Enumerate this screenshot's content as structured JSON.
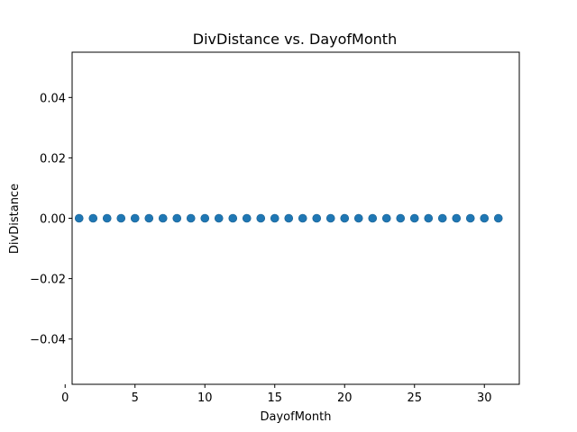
{
  "chart_data": {
    "type": "scatter",
    "title": "DivDistance vs. DayofMonth",
    "xlabel": "DayofMonth",
    "ylabel": "DivDistance",
    "xlim": [
      0.5,
      32.5
    ],
    "ylim": [
      -0.055,
      0.055
    ],
    "x_ticks": [
      0,
      5,
      10,
      15,
      20,
      25,
      30
    ],
    "x_tick_labels": [
      "0",
      "5",
      "10",
      "15",
      "20",
      "25",
      "30"
    ],
    "y_ticks": [
      -0.04,
      -0.02,
      0.0,
      0.02,
      0.04
    ],
    "y_tick_labels": [
      "−0.04",
      "−0.02",
      "0.00",
      "0.02",
      "0.04"
    ],
    "grid": false,
    "legend": "none",
    "marker_color": "#1f77b4",
    "series": [
      {
        "x": [
          1,
          2,
          3,
          4,
          5,
          6,
          7,
          8,
          9,
          10,
          11,
          12,
          13,
          14,
          15,
          16,
          17,
          18,
          19,
          20,
          21,
          22,
          23,
          24,
          25,
          26,
          27,
          28,
          29,
          30,
          31
        ],
        "y": [
          0,
          0,
          0,
          0,
          0,
          0,
          0,
          0,
          0,
          0,
          0,
          0,
          0,
          0,
          0,
          0,
          0,
          0,
          0,
          0,
          0,
          0,
          0,
          0,
          0,
          0,
          0,
          0,
          0,
          0,
          0
        ]
      }
    ]
  }
}
